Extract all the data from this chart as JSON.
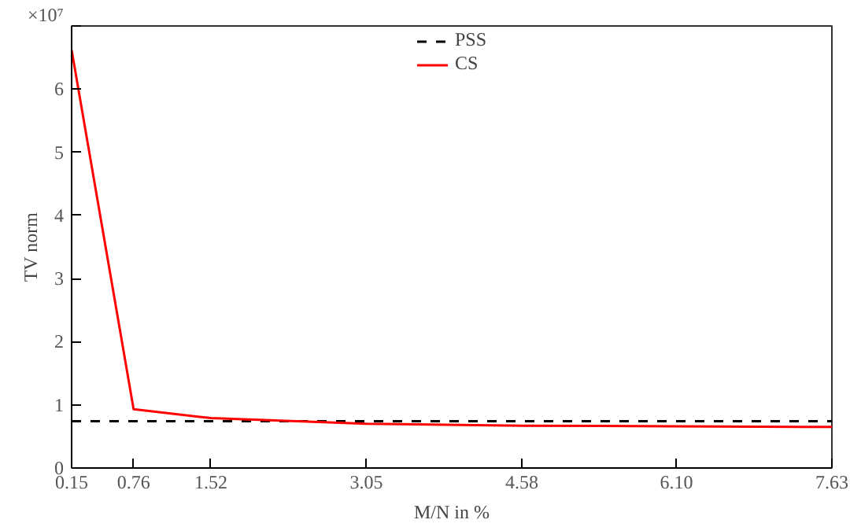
{
  "chart_data": {
    "type": "line",
    "xlabel": "M/N in %",
    "ylabel": "TV norm",
    "annotations": [
      "×10⁷"
    ],
    "x": [
      0.15,
      0.76,
      1.52,
      3.05,
      4.58,
      6.1,
      7.63
    ],
    "series": [
      {
        "name": "PSS",
        "color": "#000000",
        "line_style": "dashed",
        "x": [
          0.15,
          7.63
        ],
        "values": [
          0.74,
          0.74
        ]
      },
      {
        "name": "CS",
        "color": "#ff0000",
        "line_style": "solid",
        "values": [
          6.62,
          0.93,
          0.79,
          0.7,
          0.67,
          0.66,
          0.65
        ]
      }
    ],
    "xlim": [
      0.15,
      7.63
    ],
    "ylim": [
      0,
      7
    ],
    "xticks": [
      0.15,
      0.76,
      1.52,
      3.05,
      4.58,
      {
        "value": 6.1,
        "label": "6.10"
      },
      7.63
    ],
    "yticks": [
      0,
      1,
      2,
      3,
      4,
      5,
      6,
      {
        "value": 7,
        "label": null
      }
    ],
    "grid": false,
    "legend": "top",
    "marker": "none"
  }
}
